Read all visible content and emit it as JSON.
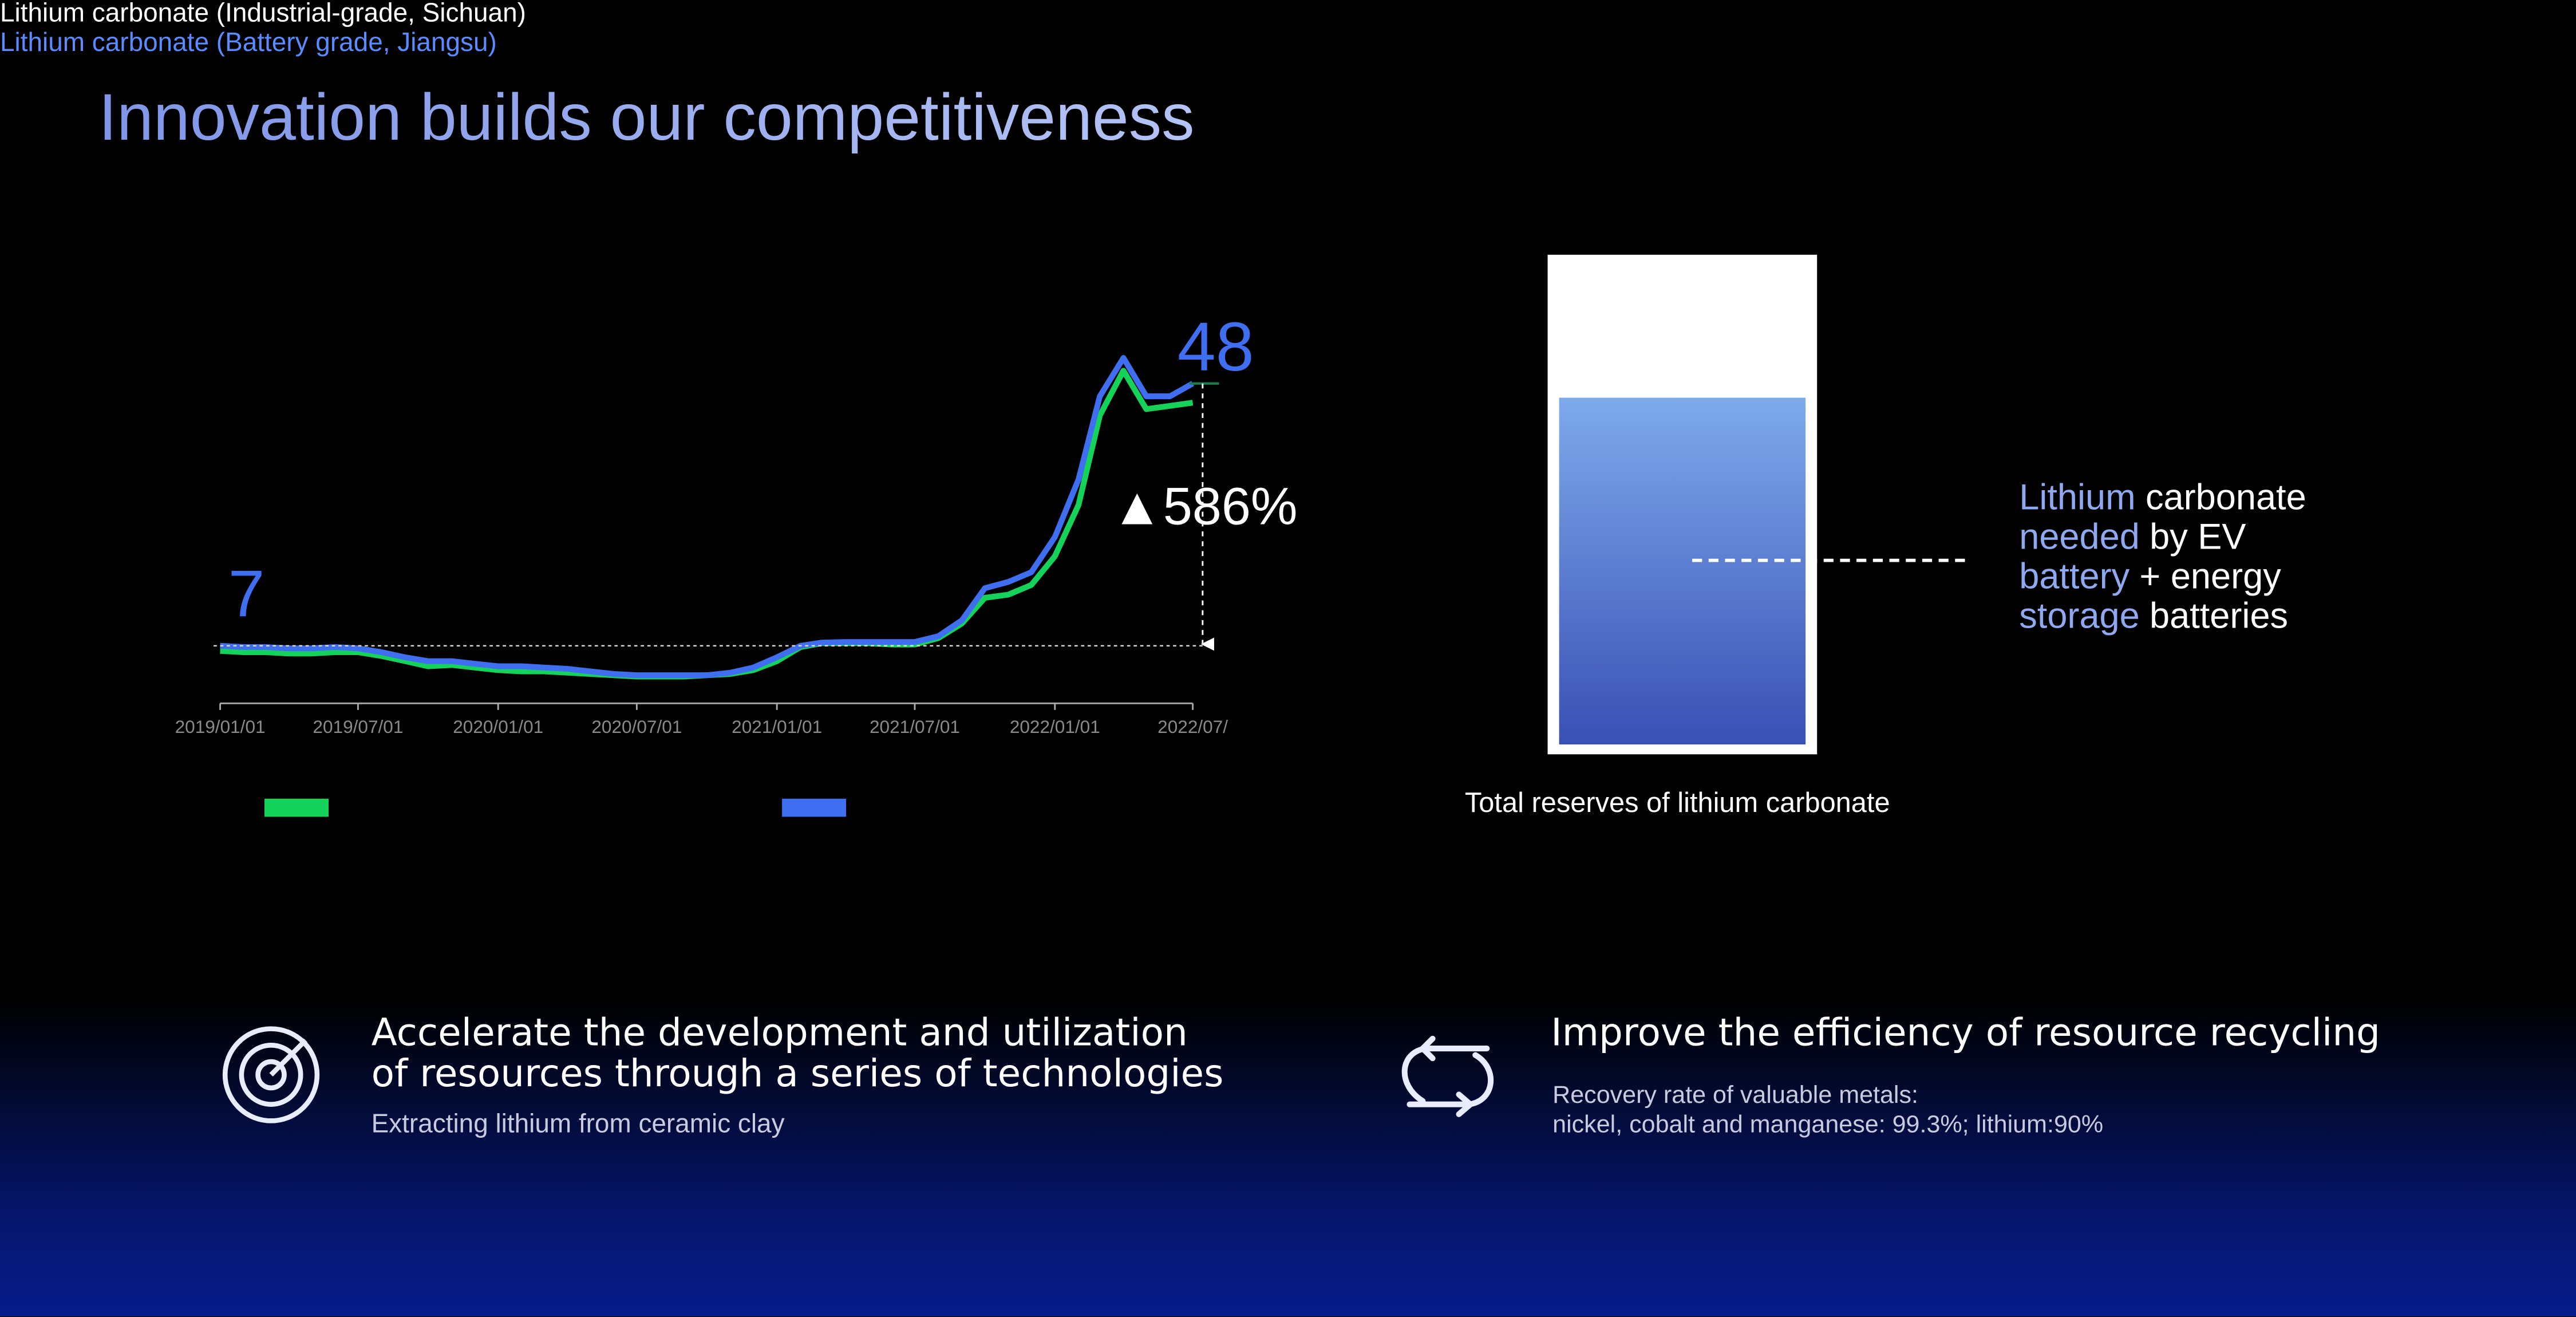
{
  "title": "Innovation builds our competitiveness",
  "chart_data": {
    "type": "line",
    "x": [
      "2019/01/01",
      "2019/02/01",
      "2019/03/01",
      "2019/04/01",
      "2019/05/01",
      "2019/06/01",
      "2019/07/01",
      "2019/08/01",
      "2019/09/01",
      "2019/10/01",
      "2019/11/01",
      "2019/12/01",
      "2020/01/01",
      "2020/02/01",
      "2020/03/01",
      "2020/04/01",
      "2020/05/01",
      "2020/06/01",
      "2020/07/01",
      "2020/08/01",
      "2020/09/01",
      "2020/10/01",
      "2020/11/01",
      "2020/12/01",
      "2021/01/01",
      "2021/02/01",
      "2021/03/01",
      "2021/04/01",
      "2021/05/01",
      "2021/06/01",
      "2021/07/01",
      "2021/08/01",
      "2021/09/01",
      "2021/10/01",
      "2021/11/01",
      "2021/12/01",
      "2022/01/01",
      "2022/02/01",
      "2022/03/01",
      "2022/04/01",
      "2022/05/01",
      "2022/06/01",
      "2022/07/01"
    ],
    "series": [
      {
        "name": "Lithium carbonate\n(Industrial-grade, Sichuan)",
        "color": "#14d25a",
        "values": [
          6.2,
          6.0,
          6.0,
          5.8,
          5.8,
          6.0,
          6.0,
          5.4,
          4.6,
          3.8,
          4.0,
          3.6,
          3.2,
          3.0,
          3.0,
          2.8,
          2.6,
          2.4,
          2.2,
          2.2,
          2.2,
          2.4,
          2.6,
          3.2,
          4.6,
          6.8,
          7.4,
          7.4,
          7.4,
          7.2,
          7.2,
          8.2,
          10.5,
          14.5,
          15,
          16.5,
          21,
          29,
          43,
          50,
          44,
          44.5,
          45
        ]
      },
      {
        "name": "Lithium carbonate\n(Battery grade, Jiangsu)",
        "color": "#3f6ef0",
        "values": [
          7,
          6.8,
          6.8,
          6.6,
          6.6,
          6.8,
          6.6,
          6.0,
          5.2,
          4.6,
          4.6,
          4.2,
          3.8,
          3.8,
          3.6,
          3.4,
          3.0,
          2.6,
          2.4,
          2.4,
          2.4,
          2.4,
          2.8,
          3.6,
          5.2,
          7,
          7.5,
          7.6,
          7.6,
          7.6,
          7.6,
          8.5,
          11,
          16,
          17,
          18.5,
          24,
          33,
          46,
          52,
          46,
          46,
          48
        ]
      }
    ],
    "xticks": [
      "2019/01/01",
      "2019/07/01",
      "2020/01/01",
      "2020/07/01",
      "2021/01/01",
      "2021/07/01",
      "2022/01/01",
      {
        "value": "2022/07/01",
        "label": "2022/07/"
      }
    ],
    "ylim": [
      -2,
      54
    ],
    "start_value": 7,
    "end_value": 48,
    "change_label": "▲586%"
  },
  "reserves": {
    "caption": "Total reserves of lithium carbonate",
    "note_lines": [
      [
        "Lithium",
        "carbonate"
      ],
      [
        "needed",
        "by EV"
      ],
      [
        "battery",
        "+ energy"
      ],
      [
        "storage",
        "batteries"
      ]
    ]
  },
  "features": [
    {
      "title_lines": [
        "Accelerate the development and utilization",
        "of resources through a series of technologies"
      ],
      "description_lines": [
        "Extracting lithium from ceramic clay"
      ]
    },
    {
      "title_lines": [
        "Improve the efficiency of resource recycling"
      ],
      "description_lines": [
        "Recovery rate of valuable metals:",
        "nickel, cobalt and  manganese: 99.3%; lithium:90%"
      ]
    }
  ]
}
